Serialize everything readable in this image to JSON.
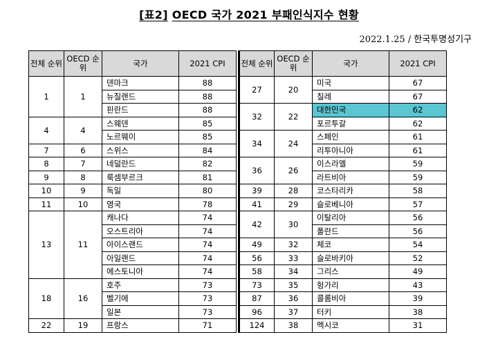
{
  "title_prefix": "[표2]",
  "title_main": "OECD 국가 2021 부패인식지수 현황",
  "date_source": "2022.1.25 / 한국투명성기구",
  "headers": {
    "rank": "전체 순위",
    "oecd_rank": "OECD 순위",
    "country": "국가",
    "cpi": "2021 CPI"
  },
  "highlight_color": "#5bc5d1",
  "left_rows": [
    {
      "rank": "1",
      "oecd": "1",
      "country": "덴마크",
      "cpi": "88"
    },
    {
      "rank": "1",
      "oecd": "1",
      "country": "뉴질랜드",
      "cpi": "88"
    },
    {
      "rank": "1",
      "oecd": "1",
      "country": "핀란드",
      "cpi": "88"
    },
    {
      "rank": "4",
      "oecd": "4",
      "country": "스웨덴",
      "cpi": "85"
    },
    {
      "rank": "4",
      "oecd": "4",
      "country": "노르웨이",
      "cpi": "85"
    },
    {
      "rank": "7",
      "oecd": "6",
      "country": "스위스",
      "cpi": "84"
    },
    {
      "rank": "8",
      "oecd": "7",
      "country": "네덜란드",
      "cpi": "82"
    },
    {
      "rank": "9",
      "oecd": "8",
      "country": "룩셈부르크",
      "cpi": "81"
    },
    {
      "rank": "10",
      "oecd": "9",
      "country": "독일",
      "cpi": "80"
    },
    {
      "rank": "11",
      "oecd": "10",
      "country": "영국",
      "cpi": "78"
    },
    {
      "rank": "13",
      "oecd": "11",
      "country": "캐나다",
      "cpi": "74"
    },
    {
      "rank": "13",
      "oecd": "11",
      "country": "오스트리아",
      "cpi": "74"
    },
    {
      "rank": "13",
      "oecd": "11",
      "country": "아이스랜드",
      "cpi": "74"
    },
    {
      "rank": "13",
      "oecd": "11",
      "country": "아일랜드",
      "cpi": "74"
    },
    {
      "rank": "13",
      "oecd": "11",
      "country": "에스토니아",
      "cpi": "74"
    },
    {
      "rank": "18",
      "oecd": "16",
      "country": "호주",
      "cpi": "73"
    },
    {
      "rank": "18",
      "oecd": "16",
      "country": "벨기에",
      "cpi": "73"
    },
    {
      "rank": "18",
      "oecd": "16",
      "country": "일본",
      "cpi": "73"
    },
    {
      "rank": "22",
      "oecd": "19",
      "country": "프랑스",
      "cpi": "71"
    }
  ],
  "right_rows": [
    {
      "rank": "27",
      "oecd": "20",
      "country": "미국",
      "cpi": "67"
    },
    {
      "rank": "27",
      "oecd": "20",
      "country": "칠레",
      "cpi": "67"
    },
    {
      "rank": "32",
      "oecd": "22",
      "country": "대한민국",
      "cpi": "62",
      "highlight": true
    },
    {
      "rank": "32",
      "oecd": "22",
      "country": "포르투갈",
      "cpi": "62"
    },
    {
      "rank": "34",
      "oecd": "24",
      "country": "스페인",
      "cpi": "61"
    },
    {
      "rank": "34",
      "oecd": "24",
      "country": "리투아니아",
      "cpi": "61"
    },
    {
      "rank": "36",
      "oecd": "26",
      "country": "이스라엘",
      "cpi": "59"
    },
    {
      "rank": "36",
      "oecd": "26",
      "country": "라트비아",
      "cpi": "59"
    },
    {
      "rank": "39",
      "oecd": "28",
      "country": "코스타리카",
      "cpi": "58"
    },
    {
      "rank": "41",
      "oecd": "29",
      "country": "슬로베니아",
      "cpi": "57"
    },
    {
      "rank": "42",
      "oecd": "30",
      "country": "이탈리아",
      "cpi": "56"
    },
    {
      "rank": "42",
      "oecd": "30",
      "country": "폴란드",
      "cpi": "56"
    },
    {
      "rank": "49",
      "oecd": "32",
      "country": "체코",
      "cpi": "54"
    },
    {
      "rank": "56",
      "oecd": "33",
      "country": "슬로바키아",
      "cpi": "52"
    },
    {
      "rank": "58",
      "oecd": "34",
      "country": "그리스",
      "cpi": "49"
    },
    {
      "rank": "73",
      "oecd": "35",
      "country": "헝가리",
      "cpi": "43"
    },
    {
      "rank": "87",
      "oecd": "36",
      "country": "콜롬비아",
      "cpi": "39"
    },
    {
      "rank": "96",
      "oecd": "37",
      "country": "터키",
      "cpi": "38"
    },
    {
      "rank": "124",
      "oecd": "38",
      "country": "멕시코",
      "cpi": "31"
    }
  ]
}
